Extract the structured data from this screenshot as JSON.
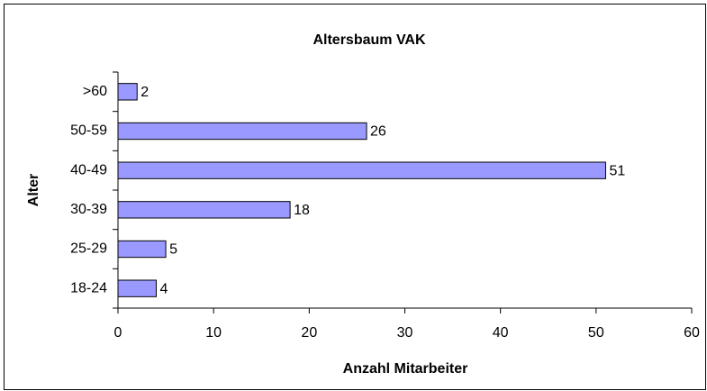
{
  "chart_data": {
    "type": "bar",
    "orientation": "horizontal",
    "title": "Altersbaum VAK",
    "x_label": "Anzahl Mitarbeiter",
    "y_label": "Alter",
    "categories": [
      ">60",
      "50-59",
      "40-49",
      "30-39",
      "25-29",
      "18-24"
    ],
    "values": [
      2,
      26,
      51,
      18,
      5,
      4
    ],
    "color": "#9999ff",
    "xlim": [
      0,
      60
    ],
    "xticks": [
      0,
      10,
      20,
      30,
      40,
      50,
      60
    ]
  }
}
